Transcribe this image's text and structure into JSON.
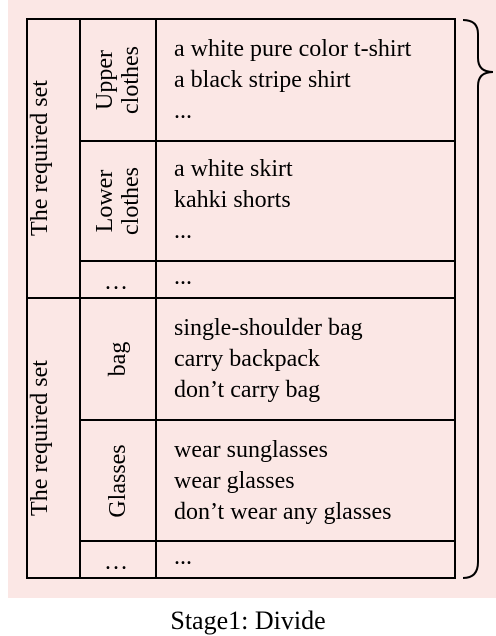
{
  "groups": [
    {
      "label": "The required set",
      "rows": [
        {
          "category": [
            "Upper",
            "clothes"
          ],
          "items": [
            "a white pure color t-shirt",
            "a black stripe shirt",
            "..."
          ]
        },
        {
          "category": [
            "Lower",
            "clothes"
          ],
          "items": [
            "a white skirt",
            "kahki shorts",
            "..."
          ]
        },
        {
          "category": [
            "…"
          ],
          "items": [
            "..."
          ]
        }
      ]
    },
    {
      "label": "The required set",
      "rows": [
        {
          "category": [
            "bag"
          ],
          "items": [
            "single-shoulder bag",
            "carry backpack",
            "don’t carry bag"
          ]
        },
        {
          "category": [
            "Glasses"
          ],
          "items": [
            "wear sunglasses",
            "wear glasses",
            "don’t wear any glasses"
          ]
        },
        {
          "category": [
            "…"
          ],
          "items": [
            "..."
          ]
        }
      ]
    }
  ],
  "caption": "Stage1: Divide"
}
